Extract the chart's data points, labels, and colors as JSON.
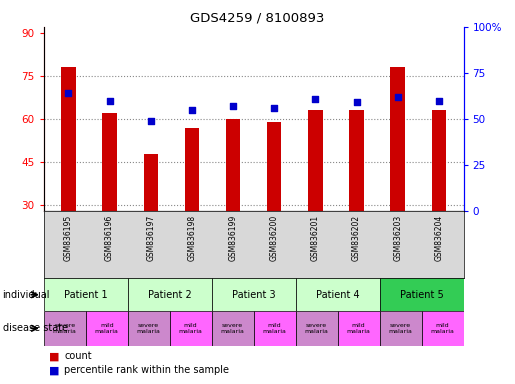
{
  "title": "GDS4259 / 8100893",
  "samples": [
    "GSM836195",
    "GSM836196",
    "GSM836197",
    "GSM836198",
    "GSM836199",
    "GSM836200",
    "GSM836201",
    "GSM836202",
    "GSM836203",
    "GSM836204"
  ],
  "bar_values": [
    78,
    62,
    48,
    57,
    60,
    59,
    63,
    63,
    78,
    63
  ],
  "percentile_values": [
    64,
    60,
    49,
    55,
    57,
    56,
    61,
    59,
    62,
    60
  ],
  "ylim_left": [
    28,
    92
  ],
  "ylim_right": [
    0,
    100
  ],
  "yticks_left": [
    30,
    45,
    60,
    75,
    90
  ],
  "yticks_right": [
    0,
    25,
    50,
    75,
    100
  ],
  "ytick_labels_right": [
    "0",
    "25",
    "50",
    "75",
    "100%"
  ],
  "bar_color": "#cc0000",
  "percentile_color": "#0000cc",
  "patient_groups": [
    {
      "label": "Patient 1",
      "start": 0,
      "end": 2,
      "color": "#ccffcc"
    },
    {
      "label": "Patient 2",
      "start": 2,
      "end": 4,
      "color": "#ccffcc"
    },
    {
      "label": "Patient 3",
      "start": 4,
      "end": 6,
      "color": "#ccffcc"
    },
    {
      "label": "Patient 4",
      "start": 6,
      "end": 8,
      "color": "#ccffcc"
    },
    {
      "label": "Patient 5",
      "start": 8,
      "end": 10,
      "color": "#33cc55"
    }
  ],
  "disease_states": [
    "severe\nmalaria",
    "mild\nmalaria",
    "severe\nmalaria",
    "mild\nmalaria",
    "severe\nmalaria",
    "mild\nmalaria",
    "severe\nmalaria",
    "mild\nmalaria",
    "severe\nmalaria",
    "mild\nmalaria"
  ],
  "disease_colors": [
    "#cc88cc",
    "#ff66ff",
    "#cc88cc",
    "#ff66ff",
    "#cc88cc",
    "#ff66ff",
    "#cc88cc",
    "#ff66ff",
    "#cc88cc",
    "#ff66ff"
  ],
  "grid_color": "#888888",
  "sample_bg_color": "#d8d8d8",
  "background_color": "#ffffff"
}
